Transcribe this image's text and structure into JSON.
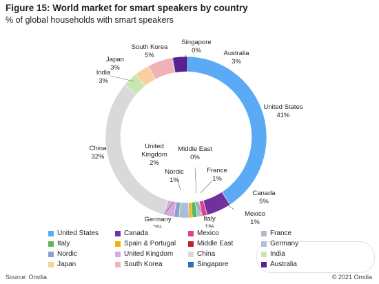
{
  "title": "Figure 15: World market for smart speakers by country",
  "subtitle": "% of global households with smart speakers",
  "source": "Source: Omdia",
  "copyright": "© 2021 Omdia",
  "colors": {
    "United States": "#5aaaf5",
    "Canada": "#7030a0",
    "Mexico": "#e0408f",
    "France": "#b0bccc",
    "Italy": "#5cb85c",
    "Spain & Portugal": "#f0b400",
    "Middle East": "#c0202a",
    "Germany": "#a8bfd8",
    "Nordic": "#8aa0c8",
    "United Kingdom": "#d8a8e0",
    "China": "#d9d9d9",
    "India": "#c8e6b0",
    "Japan": "#f8cfa0",
    "South Korea": "#f0b4b8",
    "Singapore": "#3070b8",
    "Australia": "#5a2090"
  },
  "chart_data": {
    "type": "pie",
    "donut": true,
    "series": [
      {
        "name": "United States",
        "label": "United States",
        "value": 41
      },
      {
        "name": "Canada",
        "label": "Canada",
        "value": 5
      },
      {
        "name": "Mexico",
        "label": "Mexico",
        "value": 1
      },
      {
        "name": "France",
        "label": "France",
        "value": 1
      },
      {
        "name": "Italy",
        "label": "Italy",
        "value": 1
      },
      {
        "name": "Spain & Portugal",
        "label": "",
        "value": 0.5
      },
      {
        "name": "Middle East",
        "label": "Middle East",
        "value": 0
      },
      {
        "name": "Germany",
        "label": "Germany",
        "value": 2
      },
      {
        "name": "Nordic",
        "label": "Nordic",
        "value": 1
      },
      {
        "name": "United Kingdom",
        "label": "United\nKingdom",
        "value": 2
      },
      {
        "name": "China",
        "label": "China",
        "value": 32
      },
      {
        "name": "India",
        "label": "India",
        "value": 3
      },
      {
        "name": "Japan",
        "label": "Japan",
        "value": 3
      },
      {
        "name": "South Korea",
        "label": "South Korea",
        "value": 5
      },
      {
        "name": "Singapore",
        "label": "Singapore",
        "value": 0
      },
      {
        "name": "Australia",
        "label": "Australia",
        "value": 3
      }
    ],
    "legend_order": [
      "United States",
      "Canada",
      "Mexico",
      "France",
      "Italy",
      "Spain & Portugal",
      "Middle East",
      "Germany",
      "Nordic",
      "United Kingdom",
      "China",
      "India",
      "Japan",
      "South Korea",
      "Singapore",
      "Australia"
    ],
    "legend_placement": "bottom"
  }
}
